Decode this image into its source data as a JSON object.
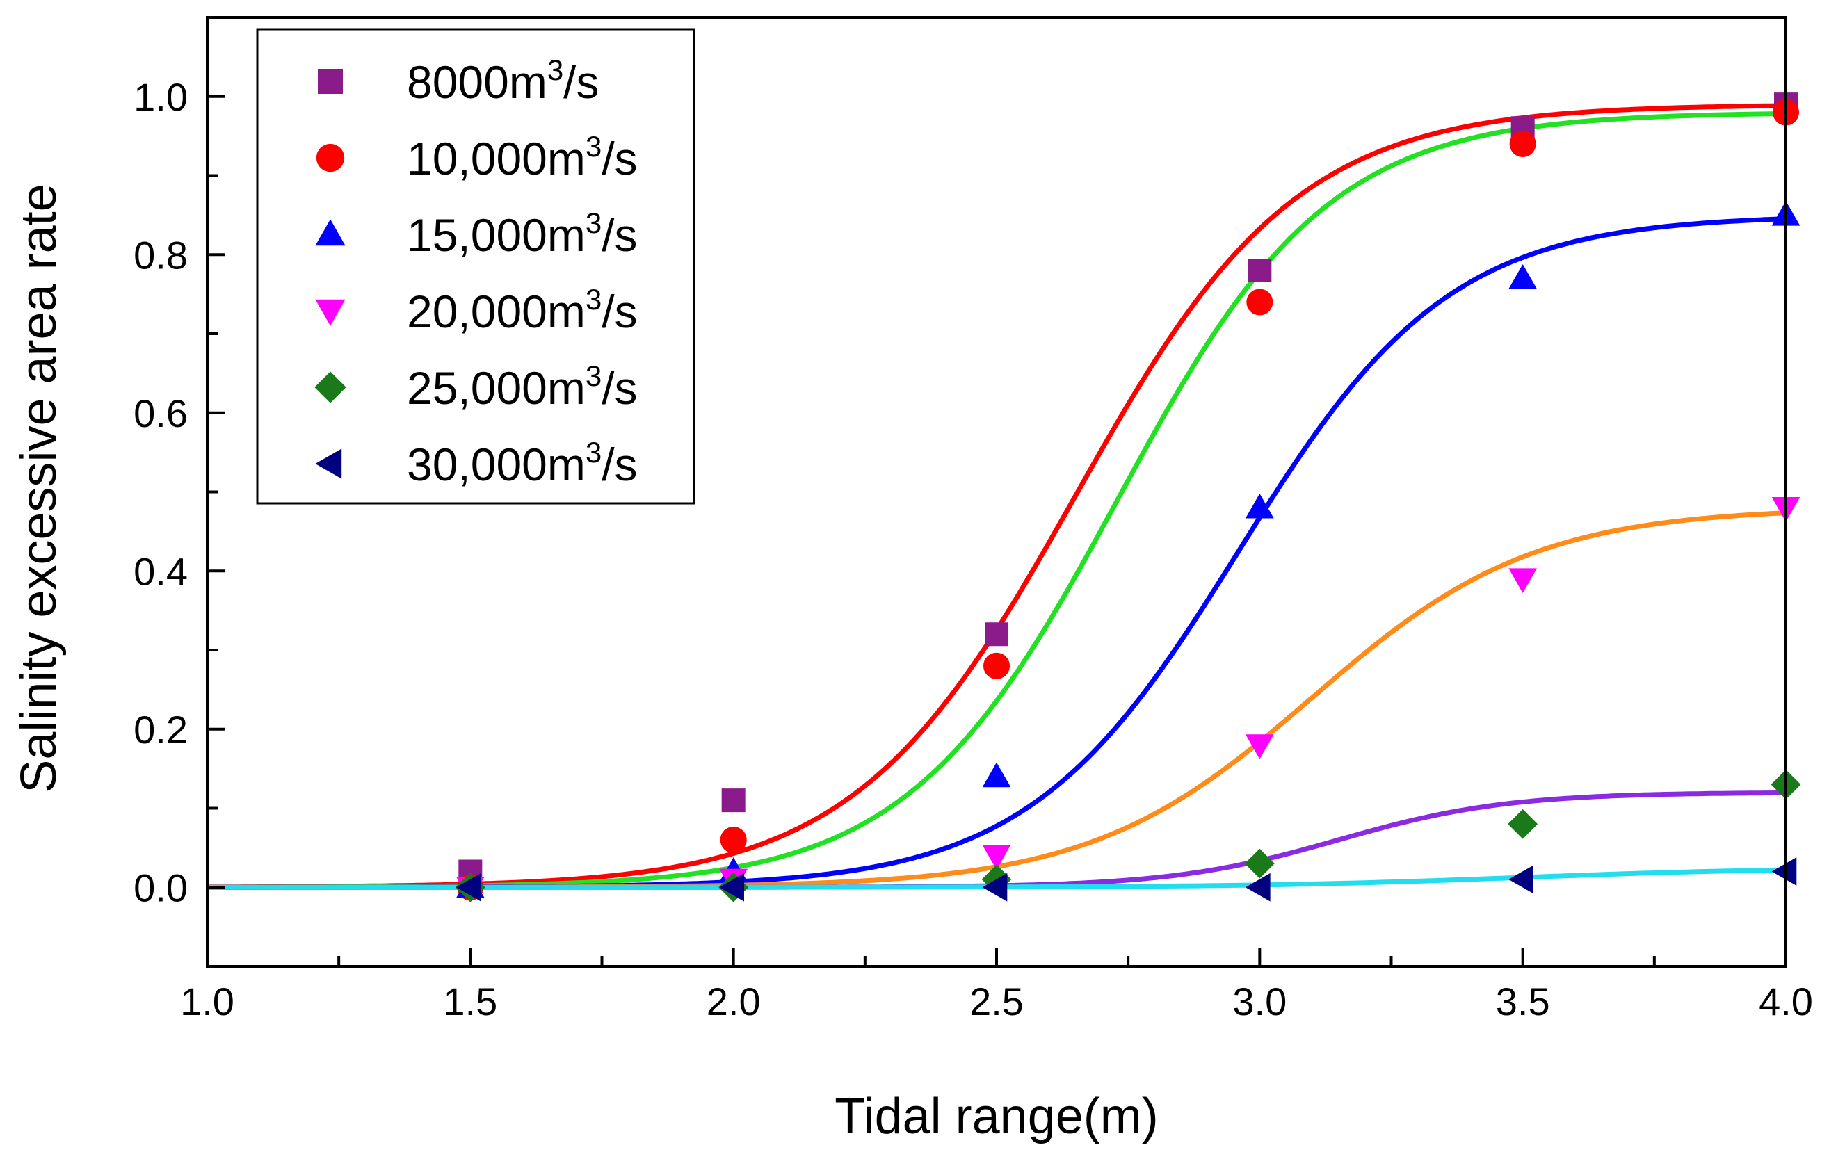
{
  "chart_data": {
    "type": "scatter",
    "title": "",
    "xlabel": "Tidal range(m)",
    "ylabel": "Salinity excessive area rate",
    "xlim": [
      1.0,
      4.0
    ],
    "ylim": [
      -0.1,
      1.1
    ],
    "x_ticks": [
      1.0,
      1.5,
      2.0,
      2.5,
      3.0,
      3.5,
      4.0
    ],
    "x_tick_labels": [
      "1.0",
      "1.5",
      "2.0",
      "2.5",
      "3.0",
      "3.5",
      "4.0"
    ],
    "y_ticks": [
      0.0,
      0.2,
      0.4,
      0.6,
      0.8,
      1.0
    ],
    "y_tick_labels": [
      "0.0",
      "0.2",
      "0.4",
      "0.6",
      "0.8",
      "1.0"
    ],
    "grid": false,
    "legend_position": "top-left",
    "series": [
      {
        "name": "8000m³/s",
        "legend_base": "8000m",
        "legend_sup": "3",
        "legend_tail": "/s",
        "marker": "square",
        "marker_color": "#8B1A8B",
        "fit_color": "#FF0000",
        "fit": {
          "A1": 0,
          "A2": 0.99,
          "x0": 2.65,
          "dx": 0.21
        },
        "x": [
          1.5,
          2.0,
          2.5,
          3.0,
          3.5,
          4.0
        ],
        "y": [
          0.02,
          0.11,
          0.32,
          0.78,
          0.96,
          0.99
        ]
      },
      {
        "name": "10,000m³/s",
        "legend_base": "10,000m",
        "legend_sup": "3",
        "legend_tail": "/s",
        "marker": "circle",
        "marker_color": "#FF0000",
        "fit_color": "#22E022",
        "fit": {
          "A1": 0,
          "A2": 0.98,
          "x0": 2.73,
          "dx": 0.2
        },
        "x": [
          1.5,
          2.0,
          2.5,
          3.0,
          3.5,
          4.0
        ],
        "y": [
          0.0,
          0.06,
          0.28,
          0.74,
          0.94,
          0.98
        ]
      },
      {
        "name": "15,000m³/s",
        "legend_base": "15,000m",
        "legend_sup": "3",
        "legend_tail": "/s",
        "marker": "triangle-up",
        "marker_color": "#0000FF",
        "fit_color": "#0000FF",
        "fit": {
          "A1": 0,
          "A2": 0.85,
          "x0": 2.96,
          "dx": 0.2
        },
        "x": [
          1.5,
          2.0,
          2.5,
          3.0,
          3.5,
          4.0
        ],
        "y": [
          0.0,
          0.02,
          0.14,
          0.48,
          0.77,
          0.85
        ]
      },
      {
        "name": "20,000m³/s",
        "legend_base": "20,000m",
        "legend_sup": "3",
        "legend_tail": "/s",
        "marker": "triangle-down",
        "marker_color": "#FF00FF",
        "fit_color": "#FF8C1A",
        "fit": {
          "A1": 0,
          "A2": 0.48,
          "x0": 3.1,
          "dx": 0.21
        },
        "x": [
          1.5,
          2.0,
          2.5,
          3.0,
          3.5,
          4.0
        ],
        "y": [
          0.0,
          0.01,
          0.04,
          0.18,
          0.39,
          0.48
        ]
      },
      {
        "name": "25,000m³/s",
        "legend_base": "25,000m",
        "legend_sup": "3",
        "legend_tail": "/s",
        "marker": "diamond",
        "marker_color": "#1A7A1A",
        "fit_color": "#8A2BE2",
        "fit": {
          "A1": 0,
          "A2": 0.12,
          "x0": 3.15,
          "dx": 0.16
        },
        "x": [
          1.5,
          2.0,
          2.5,
          3.0,
          3.5,
          4.0
        ],
        "y": [
          0.0,
          0.0,
          0.01,
          0.03,
          0.08,
          0.13
        ]
      },
      {
        "name": "30,000m³/s",
        "legend_base": "30,000m",
        "legend_sup": "3",
        "legend_tail": "/s",
        "marker": "triangle-left",
        "marker_color": "#000080",
        "fit_color": "#22DDEE",
        "fit": {
          "A1": 0,
          "A2": 0.025,
          "x0": 3.5,
          "dx": 0.25
        },
        "x": [
          1.5,
          2.0,
          2.5,
          3.0,
          3.5,
          4.0
        ],
        "y": [
          0.0,
          0.0,
          0.0,
          0.0,
          0.01,
          0.02
        ]
      }
    ]
  }
}
